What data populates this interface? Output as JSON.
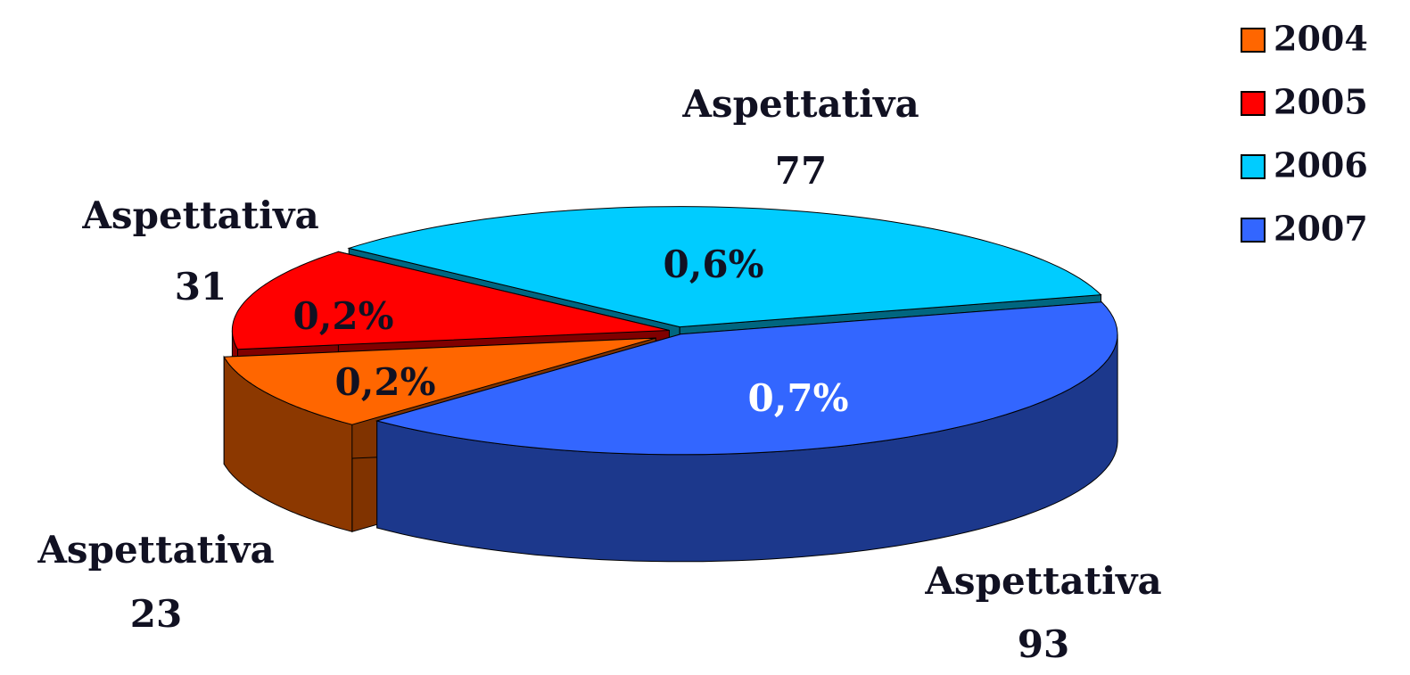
{
  "chart_data": {
    "type": "pie3d",
    "categories": [
      "2004",
      "2005",
      "2006",
      "2007"
    ],
    "values": [
      23,
      31,
      77,
      93
    ],
    "label_name": "Aspettativa",
    "percent_labels": [
      "0,2%",
      "0,2%",
      "0,6%",
      "0,7%"
    ],
    "colors": [
      "#ff6600",
      "#ff0000",
      "#00ccff",
      "#3366ff"
    ],
    "legend": "upper right"
  }
}
